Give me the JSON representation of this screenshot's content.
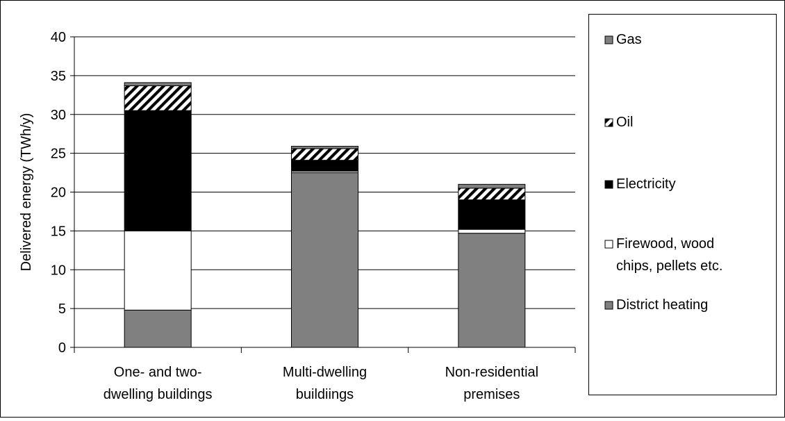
{
  "chart_data": {
    "type": "bar",
    "stacked": true,
    "title": "",
    "xlabel": "",
    "ylabel": "Delivered energy (TWh/y)",
    "ylim": [
      0,
      40
    ],
    "yticks": [
      "0",
      "5",
      "10",
      "15",
      "20",
      "25",
      "30",
      "35",
      "40"
    ],
    "grid": true,
    "legend_position": "right",
    "categories": [
      [
        "One- and two-",
        "dwelling buildings"
      ],
      [
        "Multi-dwelling",
        "buildiings"
      ],
      [
        "Non-residential",
        "premises"
      ]
    ],
    "series": [
      {
        "name": "District heating",
        "fill": "#808080",
        "values": [
          4.8,
          22.5,
          14.7
        ]
      },
      {
        "name": "Firewood, wood chips, pellets etc.",
        "legend_lines": [
          "Firewood, wood",
          "chips, pellets etc."
        ],
        "fill": "#ffffff",
        "values": [
          10.2,
          0.2,
          0.5
        ]
      },
      {
        "name": "Electricity",
        "fill": "#000000",
        "values": [
          15.5,
          1.4,
          3.8
        ]
      },
      {
        "name": "Oil",
        "fill": "hatch",
        "values": [
          3.2,
          1.5,
          1.5
        ]
      },
      {
        "name": "Gas",
        "fill": "#808080",
        "values": [
          0.4,
          0.3,
          0.5
        ]
      }
    ]
  }
}
